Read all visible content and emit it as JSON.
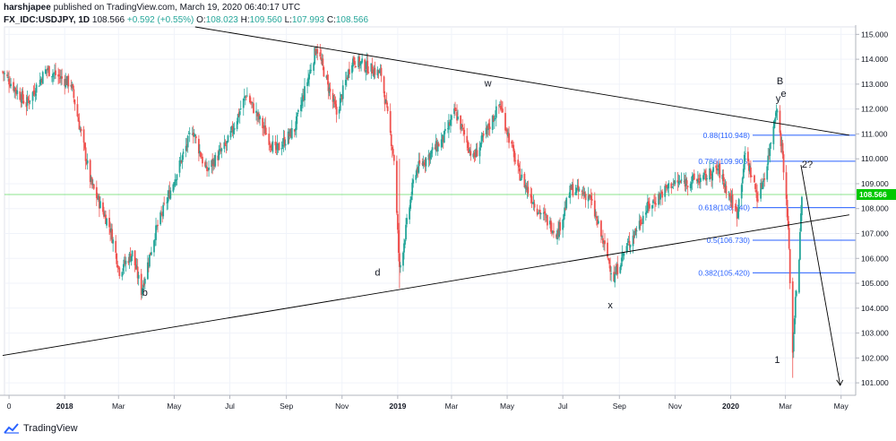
{
  "header": {
    "author": "harshjapee",
    "published": "published on TradingView.com, March 19, 2020 06:40:17 UTC",
    "symbol": "FX_IDC:USDJPY, 1D",
    "last": "108.566",
    "change": "+0.592 (+0.55%)",
    "o_label": "O:",
    "o": "108.023",
    "h_label": "H:",
    "h": "109.560",
    "l_label": "L:",
    "l": "107.993",
    "c_label": "C:",
    "c": "108.566"
  },
  "footer": {
    "brand": "TradingView"
  },
  "colors": {
    "up": "#26a69a",
    "down": "#ef5350",
    "fib": "#2962ff",
    "last_price": "#00c800",
    "trend": "#000000"
  },
  "chart_data": {
    "type": "candlestick",
    "ylim": [
      100.5,
      115.3
    ],
    "yticks": [
      "101.000",
      "102.000",
      "103.000",
      "104.000",
      "105.000",
      "106.000",
      "107.000",
      "108.000",
      "109.000",
      "110.000",
      "111.000",
      "112.000",
      "113.000",
      "114.000",
      "115.000"
    ],
    "xticks": [
      {
        "label": "0",
        "date": "2017-11-01"
      },
      {
        "label": "2018",
        "date": "2018-01-01"
      },
      {
        "label": "Mar",
        "date": "2018-03-01"
      },
      {
        "label": "May",
        "date": "2018-05-01"
      },
      {
        "label": "Jul",
        "date": "2018-07-01"
      },
      {
        "label": "Sep",
        "date": "2018-09-01"
      },
      {
        "label": "Nov",
        "date": "2018-11-01"
      },
      {
        "label": "2019",
        "date": "2019-01-01"
      },
      {
        "label": "Mar",
        "date": "2019-03-01"
      },
      {
        "label": "May",
        "date": "2019-05-01"
      },
      {
        "label": "Jul",
        "date": "2019-07-01"
      },
      {
        "label": "Sep",
        "date": "2019-09-01"
      },
      {
        "label": "Nov",
        "date": "2019-11-01"
      },
      {
        "label": "2020",
        "date": "2020-01-01"
      },
      {
        "label": "Mar",
        "date": "2020-03-01"
      },
      {
        "label": "May",
        "date": "2020-05-01"
      }
    ],
    "price_path": [
      [
        "2017-10-25",
        113.5
      ],
      [
        "2017-11-20",
        112.2
      ],
      [
        "2017-12-12",
        113.6
      ],
      [
        "2018-01-08",
        113.0
      ],
      [
        "2018-01-30",
        109.0
      ],
      [
        "2018-02-20",
        107.2
      ],
      [
        "2018-03-02",
        105.5
      ],
      [
        "2018-03-16",
        106.2
      ],
      [
        "2018-03-26",
        104.7
      ],
      [
        "2018-04-10",
        107.0
      ],
      [
        "2018-05-21",
        111.2
      ],
      [
        "2018-06-05",
        109.5
      ],
      [
        "2018-06-28",
        110.6
      ],
      [
        "2018-07-19",
        112.6
      ],
      [
        "2018-08-20",
        110.3
      ],
      [
        "2018-09-10",
        111.2
      ],
      [
        "2018-10-04",
        114.5
      ],
      [
        "2018-10-26",
        111.8
      ],
      [
        "2018-11-12",
        114.0
      ],
      [
        "2018-12-14",
        113.4
      ],
      [
        "2018-12-28",
        110.0
      ],
      [
        "2019-01-03",
        105.5
      ],
      [
        "2019-01-20",
        109.5
      ],
      [
        "2019-02-20",
        110.8
      ],
      [
        "2019-03-05",
        111.9
      ],
      [
        "2019-03-25",
        110.0
      ],
      [
        "2019-04-23",
        112.2
      ],
      [
        "2019-05-13",
        109.5
      ],
      [
        "2019-06-03",
        108.0
      ],
      [
        "2019-06-25",
        107.0
      ],
      [
        "2019-07-10",
        108.8
      ],
      [
        "2019-07-30",
        108.5
      ],
      [
        "2019-08-26",
        105.2
      ],
      [
        "2019-09-03",
        106.0
      ],
      [
        "2019-10-01",
        108.0
      ],
      [
        "2019-10-28",
        109.0
      ],
      [
        "2019-12-02",
        109.2
      ],
      [
        "2019-12-18",
        109.6
      ],
      [
        "2020-01-08",
        107.8
      ],
      [
        "2020-01-17",
        110.2
      ],
      [
        "2020-01-31",
        108.4
      ],
      [
        "2020-02-10",
        109.8
      ],
      [
        "2020-02-20",
        112.1
      ],
      [
        "2020-02-27",
        110.2
      ],
      [
        "2020-03-04",
        107.2
      ],
      [
        "2020-03-09",
        102.2
      ],
      [
        "2020-03-12",
        104.5
      ],
      [
        "2020-03-16",
        106.0
      ],
      [
        "2020-03-19",
        108.566
      ]
    ],
    "last_price": "108.566",
    "fib_levels": [
      {
        "label": "0.88(110.948)",
        "value": 110.948
      },
      {
        "label": "0.786(109.905)",
        "value": 109.905
      },
      {
        "label": "0.618(108.040)",
        "value": 108.04
      },
      {
        "label": "0.5(106.730)",
        "value": 106.73
      },
      {
        "label": "0.382(105.420)",
        "value": 105.42
      }
    ],
    "trendlines": [
      {
        "from": [
          "2018-05-24",
          115.3
        ],
        "to": [
          "2020-05-10",
          110.95
        ]
      },
      {
        "from": [
          "2017-10-25",
          102.1
        ],
        "to": [
          "2020-05-10",
          107.75
        ]
      },
      {
        "from": [
          "2020-03-18",
          109.75
        ],
        "to": [
          "2020-04-30",
          100.9
        ]
      }
    ],
    "wave_labels": [
      {
        "text": "b",
        "date": "2018-03-30",
        "price": 104.5
      },
      {
        "text": "d",
        "date": "2018-12-10",
        "price": 105.3
      },
      {
        "text": "w",
        "date": "2019-04-10",
        "price": 112.9
      },
      {
        "text": "x",
        "date": "2019-08-22",
        "price": 104.0
      },
      {
        "text": "y",
        "date": "2020-02-22",
        "price": 112.3
      },
      {
        "text": "e",
        "date": "2020-02-28",
        "price": 112.5
      },
      {
        "text": "B",
        "date": "2020-02-24",
        "price": 113.0
      },
      {
        "text": "2?",
        "date": "2020-03-25",
        "price": 109.65
      },
      {
        "text": "1",
        "date": "2020-02-21",
        "price": 101.8
      }
    ]
  }
}
